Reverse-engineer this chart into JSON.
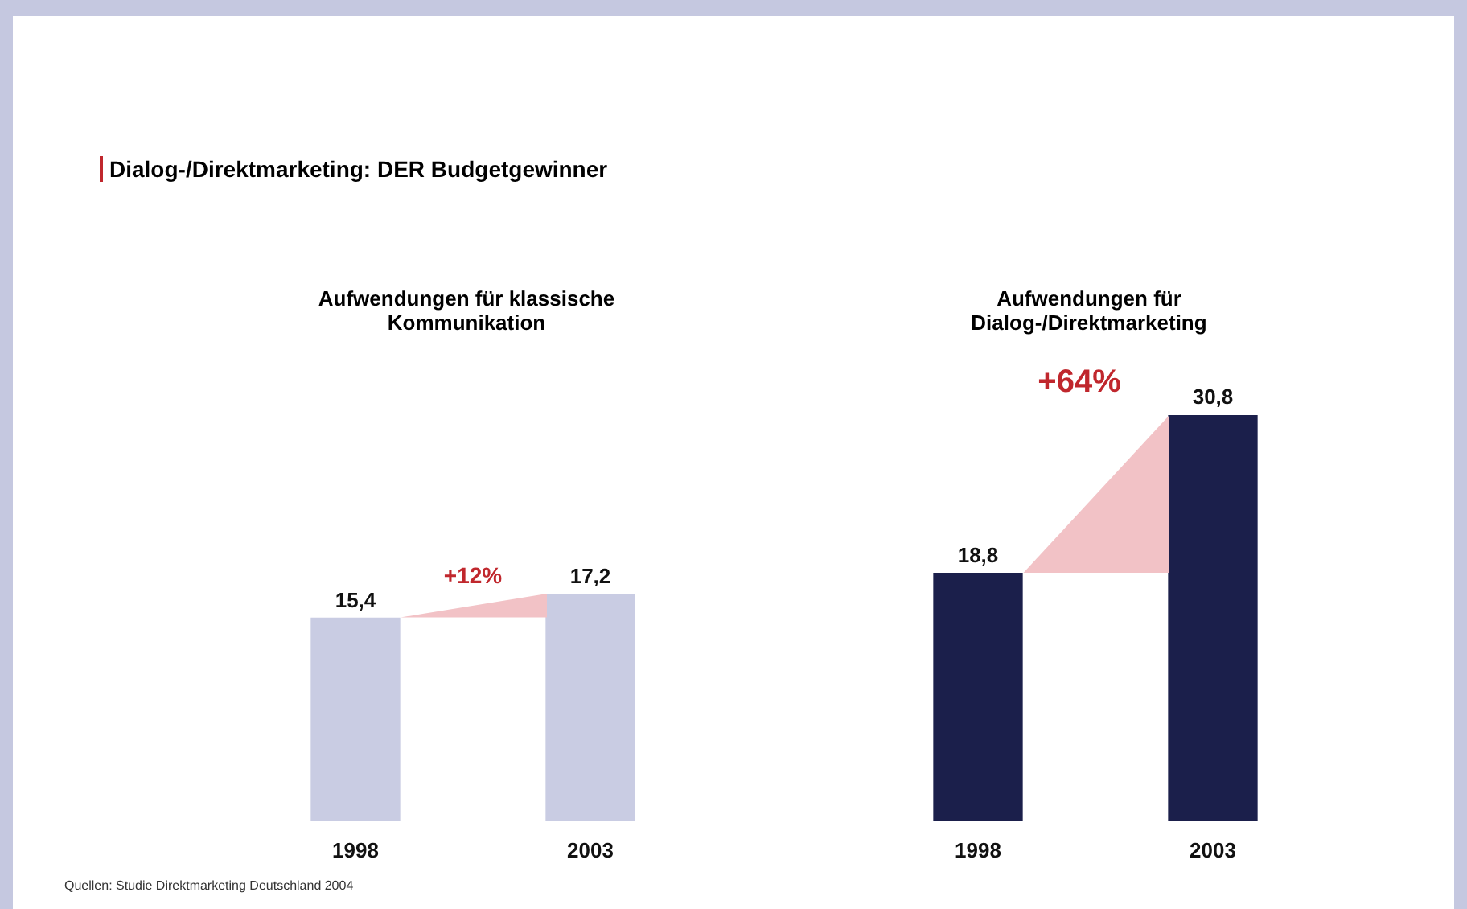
{
  "chart_data": [
    {
      "type": "other",
      "title": "Dialog-/Direktmarketing: DER Budgetgewinner",
      "annotations": [
        "Quellen: Studie Direktmarketing Deutschland 2004"
      ]
    },
    {
      "type": "bar",
      "title": "Aufwendungen für klassische Kommunikation",
      "categories": [
        "1998",
        "2003"
      ],
      "values": [
        15.4,
        17.2
      ],
      "value_labels": [
        "15,4",
        "17,2"
      ],
      "color": "#c9cce3",
      "annotations": [
        "+12%"
      ]
    },
    {
      "type": "bar",
      "title": "Aufwendungen für Dialog-/Direktmarketing",
      "categories": [
        "1998",
        "2003"
      ],
      "values": [
        18.8,
        30.8
      ],
      "value_labels": [
        "18,8",
        "30,8"
      ],
      "color": "#1b1f4b",
      "annotations": [
        "+64%"
      ]
    }
  ]
}
